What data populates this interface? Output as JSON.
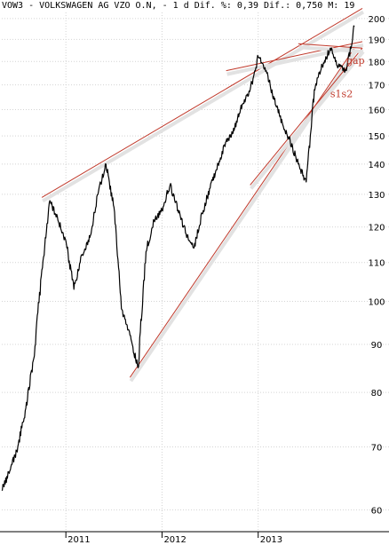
{
  "header": {
    "text": "VOW3 - VOLKSWAGEN AG VZO O.N, - 1 d Dif. %: 0,39 Dif.: 0,750 M: 19"
  },
  "chart_data": {
    "type": "line",
    "title": "",
    "xlabel": "",
    "ylabel": "",
    "scale": "log",
    "grid": true,
    "ylim": [
      57,
      203
    ],
    "xlim": [
      "2010-05",
      "2014-02"
    ],
    "y_ticks": [
      60,
      70,
      80,
      90,
      100,
      110,
      120,
      130,
      140,
      150,
      160,
      170,
      180,
      190,
      200
    ],
    "x_ticks": [
      "2011",
      "2012",
      "2013"
    ],
    "x_tick_dates": [
      "2011-01",
      "2012-01",
      "2013-01"
    ],
    "series": [
      {
        "color": "#000000",
        "x": [
          "2010-05",
          "2010-06",
          "2010-07",
          "2010-08",
          "2010-09",
          "2010-10",
          "2010-11",
          "2010-12",
          "2011-01",
          "2011-02",
          "2011-03",
          "2011-04",
          "2011-05",
          "2011-06",
          "2011-07",
          "2011-08",
          "2011-09",
          "2011-10",
          "2011-11",
          "2011-12",
          "2012-01",
          "2012-02",
          "2012-03",
          "2012-04",
          "2012-05",
          "2012-06",
          "2012-07",
          "2012-08",
          "2012-09",
          "2012-10",
          "2012-11",
          "2012-12",
          "2013-01",
          "2013-02",
          "2013-03",
          "2013-04",
          "2013-05",
          "2013-06",
          "2013-07",
          "2013-08",
          "2013-09",
          "2013-10",
          "2013-11",
          "2013-12",
          "2014-01"
        ],
        "y": [
          63,
          66,
          70,
          77,
          87,
          108,
          128,
          122,
          116,
          103,
          112,
          117,
          130,
          140,
          126,
          98,
          92,
          85,
          113,
          122,
          125,
          133,
          125,
          118,
          114,
          124,
          132,
          140,
          148,
          152,
          162,
          168,
          182,
          176,
          164,
          155,
          148,
          140,
          134,
          168,
          178,
          186,
          178,
          176,
          196
        ]
      }
    ],
    "trendlines": [
      {
        "color": "#c0392b",
        "from": [
          "2010-10",
          129
        ],
        "to": [
          "2014-02",
          205
        ]
      },
      {
        "color": "#c0392b",
        "from": [
          "2011-09",
          83
        ],
        "to": [
          "2014-01",
          186
        ]
      },
      {
        "color": "#c0392b",
        "from": [
          "2012-12",
          133
        ],
        "to": [
          "2014-02",
          186
        ]
      },
      {
        "color": "#c0392b",
        "from": [
          "2012-09",
          176
        ],
        "to": [
          "2014-02",
          189
        ]
      },
      {
        "color": "#c0392b",
        "from": [
          "2013-06",
          188
        ],
        "to": [
          "2014-02",
          186
        ]
      }
    ],
    "annotations": [
      {
        "text": "gap",
        "x": "2013-12",
        "y": 179,
        "color": "#c0392b"
      },
      {
        "text": "s1s2",
        "x": "2013-10",
        "y": 165,
        "color": "#c0392b"
      }
    ]
  }
}
